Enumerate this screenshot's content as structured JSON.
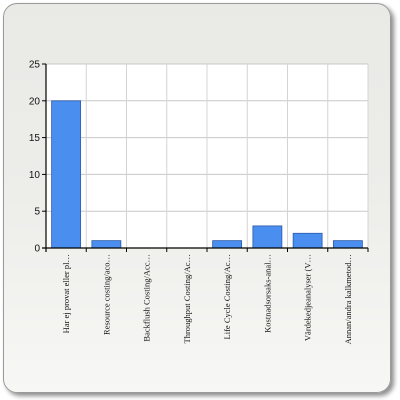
{
  "chart_data": {
    "type": "bar",
    "categories": [
      "Har ej provat eller pl…",
      "Resource costing/aco…",
      "Backflush Costing/Acc…",
      "Throughput Costing/Ac…",
      "Life Cycle Costing/Ac…",
      "Kostnadsorsaks-anal…",
      "Värdekedjeanalyser (V…",
      "Annan/andra kalkmetod…"
    ],
    "values": [
      20,
      1,
      0,
      0,
      1,
      3,
      2,
      1
    ],
    "yticks": [
      "0",
      "5",
      "10",
      "15",
      "20",
      "25"
    ],
    "ylim": [
      0,
      25
    ],
    "grid": true,
    "bar_color": "#4a8ef0",
    "bar_stroke": "#2a5aa8"
  }
}
